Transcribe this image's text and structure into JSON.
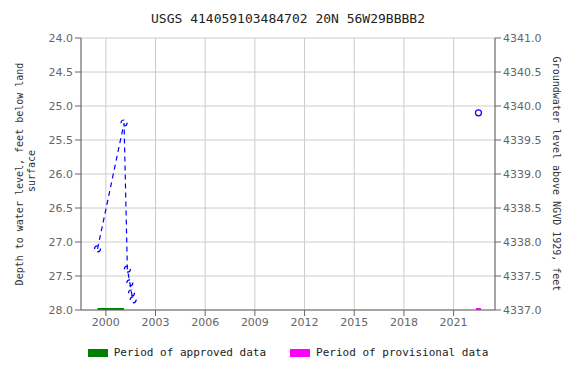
{
  "chart_data": {
    "type": "line",
    "title": "USGS 414059103484702  20N 56W29BBBB2",
    "y_label": "Depth to water level, feet below land\n surface",
    "y2_label": "Groundwater level above NGVD 1929, feet",
    "xlim": [
      1998.5,
      2023.5
    ],
    "xticks": [
      2000,
      2003,
      2006,
      2009,
      2012,
      2015,
      2018,
      2021
    ],
    "ylim": [
      28.0,
      24.0
    ],
    "yticks": [
      {
        "value": 24.0,
        "label": "24.0"
      },
      24.5,
      {
        "value": 25.0,
        "label": "25.0"
      },
      25.5,
      {
        "value": 26.0,
        "label": "26.0"
      },
      26.5,
      {
        "value": 27.0,
        "label": "27.0"
      },
      27.5,
      {
        "value": 28.0,
        "label": "28.0"
      }
    ],
    "y2lim": [
      4337.0,
      4341.0
    ],
    "y2ticks": [
      {
        "value": 4337.0,
        "label": "4337.0"
      },
      4337.5,
      {
        "value": 4338.0,
        "label": "4338.0"
      },
      4338.5,
      {
        "value": 4339.0,
        "label": "4339.0"
      },
      4339.5,
      {
        "value": 4340.0,
        "label": "4340.0"
      },
      4340.5,
      {
        "value": 4341.0,
        "label": "4341.0"
      }
    ],
    "grid": true,
    "legend": "bottom",
    "series": [
      {
        "type": "line",
        "color": "#0000ff",
        "line_style": "dashed",
        "marker": "circle",
        "x": [
          1999.5,
          2001.1,
          2001.3,
          2001.45,
          2001.55,
          2001.65
        ],
        "values": [
          27.1,
          25.25,
          27.4,
          27.6,
          27.75,
          27.85
        ]
      },
      {
        "type": "scatter",
        "color": "#0000ff",
        "marker": "circle",
        "x": [
          2022.5
        ],
        "values": [
          25.1
        ]
      },
      {
        "name": "Period of approved data",
        "type": "line",
        "color": "#008000",
        "line_style": "thick",
        "x": [
          1999.5,
          2001.1
        ],
        "values": [
          28.0,
          28.0
        ]
      },
      {
        "name": "Period of provisional data",
        "type": "line",
        "color": "#ff00ff",
        "line_style": "thick",
        "x": [
          2022.35,
          2022.65
        ],
        "values": [
          28.0,
          28.0
        ]
      }
    ]
  }
}
